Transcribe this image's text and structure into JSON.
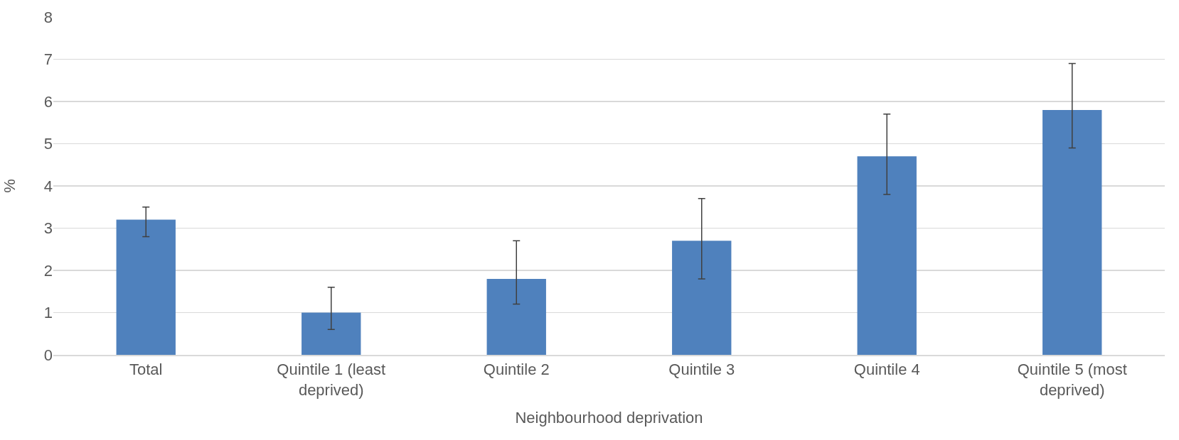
{
  "chart_data": {
    "type": "bar",
    "xlabel": "Neighbourhood deprivation",
    "ylabel": "%",
    "categories": [
      "Total",
      "Quintile 1 (least deprived)",
      "Quintile 2",
      "Quintile 3",
      "Quintile 4",
      "Quintile 5 (most deprived)"
    ],
    "values": [
      3.2,
      1.0,
      1.8,
      2.7,
      4.7,
      5.8
    ],
    "errors": [
      [
        2.8,
        3.5
      ],
      [
        0.6,
        1.6
      ],
      [
        1.2,
        2.7
      ],
      [
        1.8,
        3.7
      ],
      [
        3.8,
        5.7
      ],
      [
        4.9,
        6.9
      ]
    ],
    "color": "#4f81bd",
    "ylim": [
      0,
      8
    ],
    "yticks": [
      0,
      1,
      2,
      3,
      4,
      5,
      6,
      7,
      8
    ],
    "grid": "y"
  }
}
